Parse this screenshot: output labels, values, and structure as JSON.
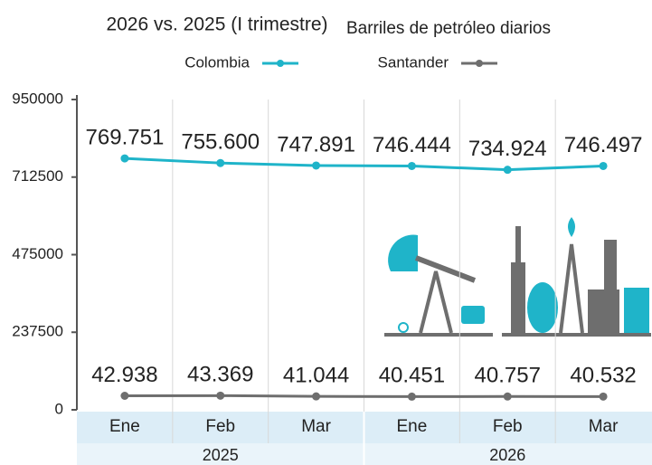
{
  "chart_data": {
    "type": "line",
    "title": "2026 vs. 2025 (I trimestre)",
    "subtitle": "Barriles de petróleo diarios",
    "categories": [
      "Ene",
      "Feb",
      "Mar",
      "Ene",
      "Feb",
      "Mar"
    ],
    "category_groups": [
      "2025",
      "2026"
    ],
    "series": [
      {
        "name": "Colombia",
        "color": "#1fb4c9",
        "values": [
          769751,
          755600,
          747891,
          746444,
          734924,
          746497
        ],
        "value_labels": [
          "769.751",
          "755.600",
          "747.891",
          "746.444",
          "734.924",
          "746.497"
        ]
      },
      {
        "name": "Santander",
        "color": "#6e6e6e",
        "values": [
          42938,
          43369,
          41044,
          40451,
          40757,
          40532
        ],
        "value_labels": [
          "42.938",
          "43.369",
          "41.044",
          "40.451",
          "40.757",
          "40.532"
        ]
      }
    ],
    "ylim": [
      0,
      950000
    ],
    "yticks": [
      0,
      237500,
      475000,
      712500,
      950000
    ],
    "grid": false
  }
}
